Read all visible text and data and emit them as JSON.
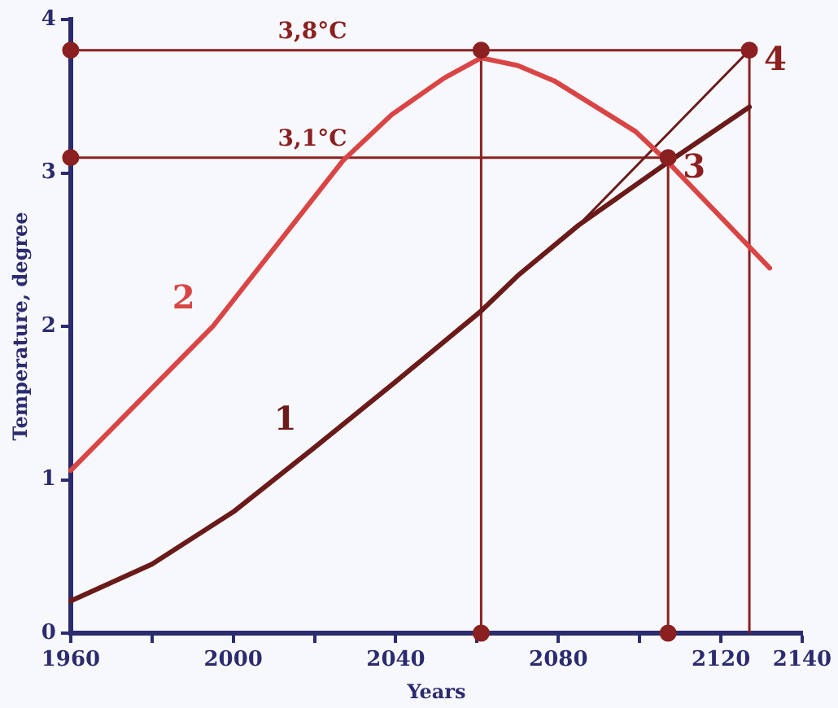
{
  "chart_data": {
    "type": "line",
    "xlabel": "Years",
    "ylabel": "Temperature, degree",
    "xlim": [
      1960,
      2140
    ],
    "xticks": [
      1960,
      {
        "value": 1980,
        "label": null
      },
      2000,
      {
        "value": 2020,
        "label": null
      },
      2040,
      {
        "value": 2060,
        "label": null
      },
      2080,
      {
        "value": 2100,
        "label": null
      },
      2120,
      2140
    ],
    "ylim": [
      0,
      4
    ],
    "yticks": [
      0,
      1,
      2,
      3,
      4
    ],
    "grid": false,
    "legend": false,
    "marker": "none",
    "line_style": "solid",
    "series": [
      {
        "name": "1",
        "color": "#6b1a1a",
        "x": [
          1960,
          1980,
          2000,
          2020,
          2040,
          2061,
          2070,
          2085,
          2107,
          2127
        ],
        "values": [
          0.21,
          0.45,
          0.79,
          1.21,
          1.64,
          2.1,
          2.33,
          2.66,
          3.07,
          3.43
        ]
      },
      {
        "name": "2",
        "color": "#d94545",
        "x": [
          1960,
          1995,
          2027,
          2039,
          2052,
          2061,
          2070,
          2079,
          2099,
          2107,
          2132
        ],
        "values": [
          1.06,
          2.0,
          3.08,
          3.38,
          3.62,
          3.75,
          3.7,
          3.6,
          3.27,
          3.07,
          2.38
        ]
      },
      {
        "color": "#6b1a1a",
        "x": [
          2085,
          2127
        ],
        "values": [
          2.66,
          3.8
        ]
      },
      {
        "type": "scatter",
        "marker": "circle",
        "color": "#8b2020",
        "x": [
          1960,
          2061,
          2127,
          1960,
          2107,
          2061,
          2107
        ],
        "values": [
          3.8,
          3.8,
          3.8,
          3.1,
          3.1,
          0,
          0
        ]
      }
    ],
    "ref_lines": [
      {
        "axis": "y",
        "value": 3.8,
        "label": "3,8°C",
        "color": "#8b2020"
      },
      {
        "axis": "y",
        "value": 3.1,
        "label": "3,1°C",
        "color": "#8b2020"
      },
      {
        "axis": "x",
        "value": 2061,
        "color": "#8b2020"
      },
      {
        "axis": "x",
        "value": 2107,
        "color": "#8b2020"
      },
      {
        "axis": "x",
        "value": 2127,
        "color": "#8b2020"
      }
    ],
    "annotations": [
      {
        "text": "3",
        "x": 2107,
        "y": 3.1
      },
      {
        "text": "4",
        "x": 2127,
        "y": 3.8
      }
    ]
  }
}
